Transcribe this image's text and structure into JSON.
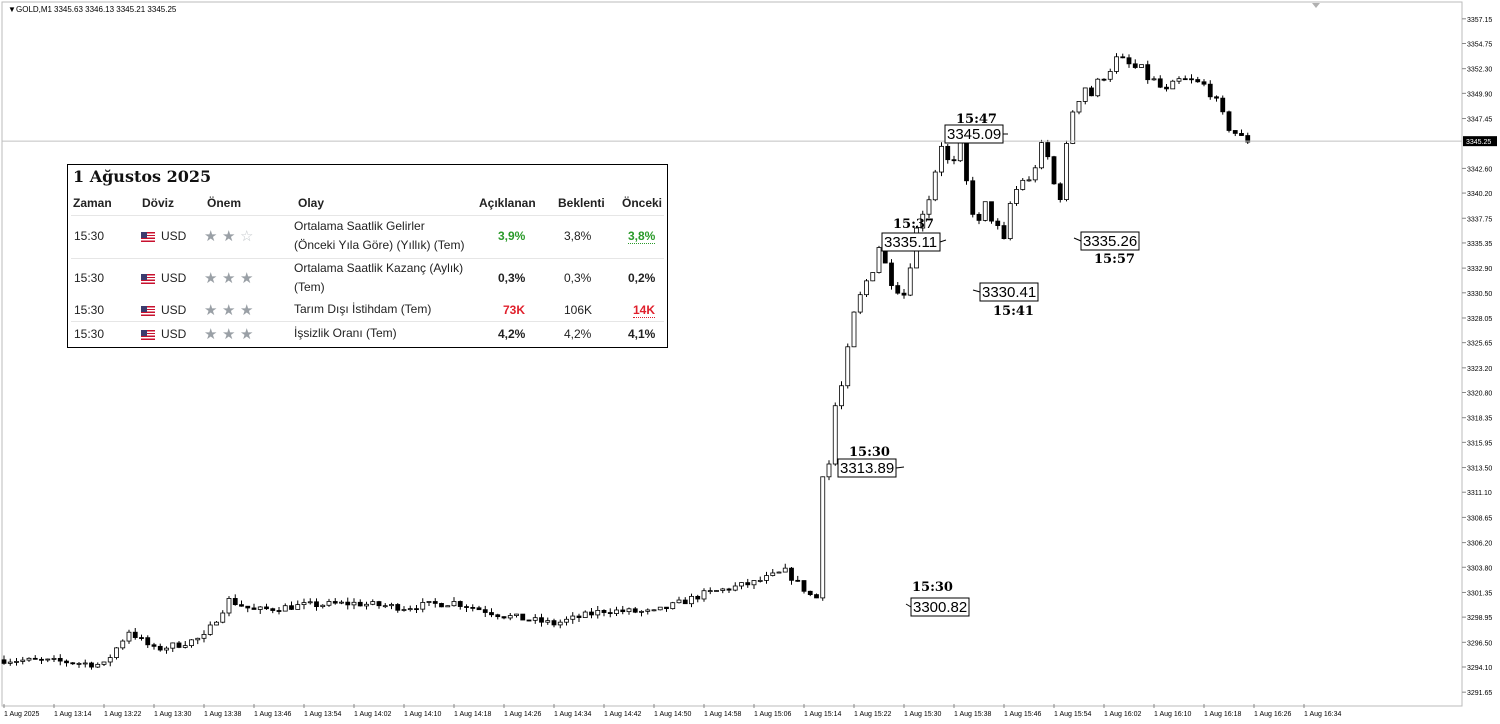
{
  "window": {
    "symbol_label": "GOLD,M1",
    "ohlc_readout": "3345.63 3346.13 3345.21 3345.25"
  },
  "price_axis": {
    "labels": [
      "3357.15",
      "3354.75",
      "3352.30",
      "3349.90",
      "3347.45",
      "3342.60",
      "3340.20",
      "3337.75",
      "3335.35",
      "3332.90",
      "3330.50",
      "3328.05",
      "3325.65",
      "3323.20",
      "3320.80",
      "3318.35",
      "3315.95",
      "3313.50",
      "3311.10",
      "3308.65",
      "3306.20",
      "3303.80",
      "3301.35",
      "3298.95",
      "3296.50",
      "3294.10",
      "3291.65"
    ],
    "current_price_label": "3345.25"
  },
  "time_axis": {
    "labels": [
      "1 Aug 2025",
      "1 Aug 13:14",
      "1 Aug 13:22",
      "1 Aug 13:30",
      "1 Aug 13:38",
      "1 Aug 13:46",
      "1 Aug 13:54",
      "1 Aug 14:02",
      "1 Aug 14:10",
      "1 Aug 14:18",
      "1 Aug 14:26",
      "1 Aug 14:34",
      "1 Aug 14:42",
      "1 Aug 14:50",
      "1 Aug 14:58",
      "1 Aug 15:06",
      "1 Aug 15:14",
      "1 Aug 15:22",
      "1 Aug 15:30",
      "1 Aug 15:38",
      "1 Aug 15:46",
      "1 Aug 15:54",
      "1 Aug 16:02",
      "1 Aug 16:10",
      "1 Aug 16:18",
      "1 Aug 16:26",
      "1 Aug 16:34"
    ]
  },
  "chart_data": {
    "type": "candlestick",
    "symbol": "GOLD",
    "timeframe": "M1",
    "ylim": [
      3290.5,
      3358.3
    ],
    "current_price": 3345.25,
    "annotations": [
      {
        "time": "15:30",
        "price": "3300.82"
      },
      {
        "time": "15:30",
        "price": "3313.89"
      },
      {
        "time": "15:37",
        "price": "3335.11"
      },
      {
        "time": "15:41",
        "price": "3330.41"
      },
      {
        "time": "15:47",
        "price": "3345.09"
      },
      {
        "time": "15:57",
        "price": "3335.26"
      }
    ]
  },
  "calendar": {
    "date_title": "1 Ağustos 2025",
    "headers": {
      "time": "Zaman",
      "currency": "Döviz",
      "importance": "Önem",
      "event": "Olay",
      "actual": "Açıklanan",
      "forecast": "Beklenti",
      "previous": "Önceki"
    },
    "rows": [
      {
        "time": "15:30",
        "currency": "USD",
        "stars": 2,
        "event_line1": "Ortalama Saatlik Gelirler",
        "event_line2": "(Önceki Yıla Göre) (Yıllık) (Tem)",
        "actual": "3,9%",
        "forecast": "3,8%",
        "previous": "3,8%"
      },
      {
        "time": "15:30",
        "currency": "USD",
        "stars": 3,
        "event_line1": "Ortalama Saatlik Kazanç (Aylık)",
        "event_line2": "(Tem)",
        "actual": "0,3%",
        "forecast": "0,3%",
        "previous": "0,2%"
      },
      {
        "time": "15:30",
        "currency": "USD",
        "stars": 3,
        "event_line1": "Tarım Dışı İstihdam (Tem)",
        "event_line2": "",
        "actual": "73K",
        "forecast": "106K",
        "previous": "14K"
      },
      {
        "time": "15:30",
        "currency": "USD",
        "stars": 3,
        "event_line1": "İşsizlik Oranı (Tem)",
        "event_line2": "",
        "actual": "4,2%",
        "forecast": "4,2%",
        "previous": "4,1%"
      }
    ]
  }
}
